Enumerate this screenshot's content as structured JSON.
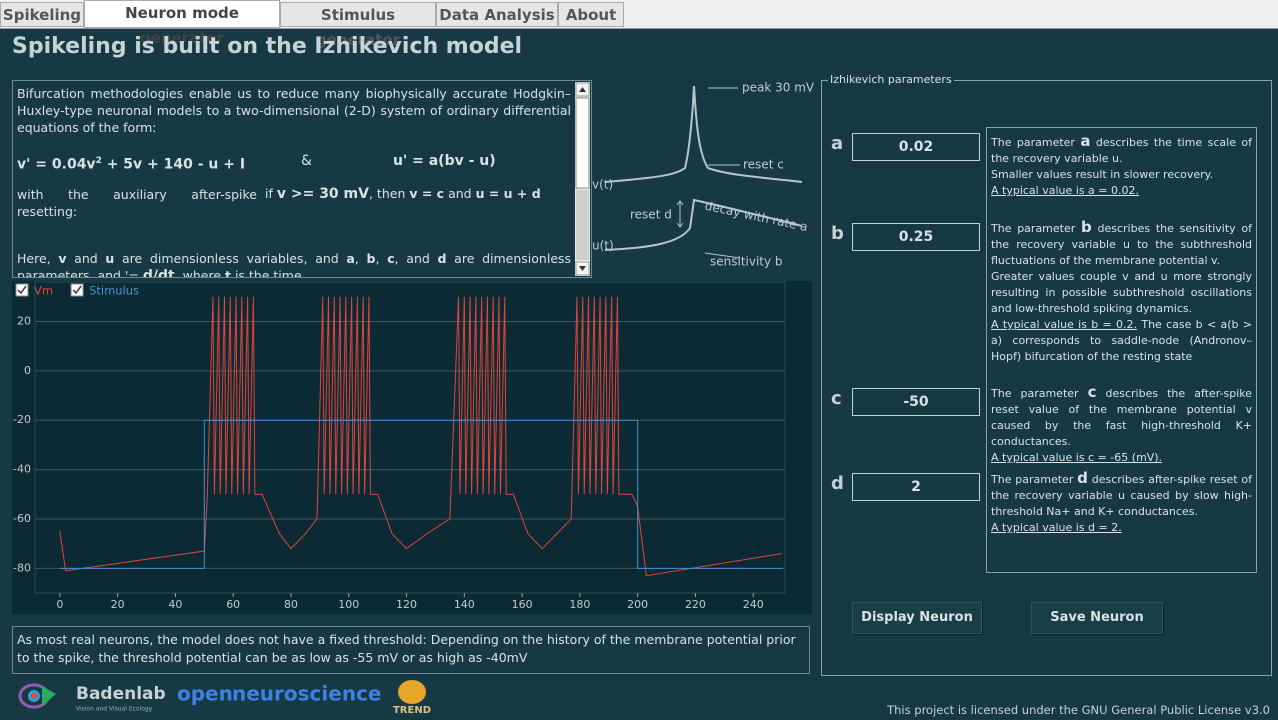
{
  "tabs": [
    "Spikeling",
    "Neuron mode generator",
    "Stimulus generator",
    "Data Analysis",
    "About"
  ],
  "title": "Spikeling is built on the Izhikevich model",
  "intro": {
    "p1": "Bifurcation methodologies enable us to reduce many biophysically accurate Hodgkin–Huxley-type neuronal models to a two-dimensional (2-D) system of ordinary differential equations of the form:",
    "eq_v": [
      "v' = 0.04v",
      "2",
      " + 5v + 140 - u + I"
    ],
    "eq_and": "&",
    "eq_u": "u' = a(bv - u)",
    "reset": [
      "with the auxiliary after-spike resetting:",
      "if ",
      "v >= 30 mV",
      ", then ",
      "v = c",
      " and ",
      "u = u + d"
    ],
    "p3": [
      "Here, ",
      "v",
      " and ",
      "u",
      " are dimensionless variables, and ",
      "a",
      ", ",
      "b",
      ", ",
      "c",
      ", and ",
      "d",
      " are dimensionless parameters, and '= ",
      "d/dt",
      ", where ",
      "t",
      " is the time."
    ]
  },
  "figure": {
    "peak": "peak 30 mV",
    "reset_c": "reset  c",
    "v": "v(t)",
    "reset_d": "reset  d",
    "decay": "decay with rate  a",
    "u": "u(t)",
    "sensitivity": "sensitivity  b"
  },
  "chart_data": {
    "type": "line",
    "series": [
      {
        "name": "Vm",
        "color": "#e0443c",
        "x": [
          0,
          2,
          50,
          51,
          53,
          53.5,
          55,
          55.5,
          57,
          57.5,
          59,
          59.5,
          61,
          61.5,
          63,
          63.5,
          65,
          65.5,
          67,
          67.5,
          70,
          76,
          80,
          85,
          89,
          91,
          91.5,
          93,
          93.5,
          95,
          95.5,
          97,
          97.5,
          99,
          99.5,
          101,
          101.5,
          103,
          103.5,
          105,
          105.5,
          107,
          107.5,
          110,
          115,
          120,
          127,
          135,
          138,
          138.5,
          140,
          140.5,
          142,
          142.5,
          144,
          144.5,
          146,
          146.5,
          148,
          148.5,
          150,
          150.5,
          152,
          152.5,
          154,
          154.5,
          157,
          162,
          167,
          172,
          177,
          179,
          179.5,
          181,
          181.5,
          183,
          183.5,
          185,
          185.5,
          187,
          187.5,
          189,
          189.5,
          191,
          191.5,
          193,
          193.5,
          198,
          200,
          203,
          250
        ],
        "values": [
          -65,
          -81,
          -73,
          -52,
          30,
          -50,
          30,
          -50,
          30,
          -50,
          30,
          -50,
          30,
          -50,
          30,
          -50,
          30,
          -50,
          30,
          -50,
          -50,
          -66,
          -72,
          -66,
          -60,
          30,
          -50,
          30,
          -50,
          30,
          -50,
          30,
          -50,
          30,
          -50,
          30,
          -50,
          30,
          -50,
          30,
          -50,
          30,
          -50,
          -50,
          -66,
          -72,
          -66,
          -60,
          30,
          -50,
          30,
          -50,
          30,
          -50,
          30,
          -50,
          30,
          -50,
          30,
          -50,
          30,
          -50,
          30,
          -50,
          30,
          -50,
          -50,
          -66,
          -72,
          -66,
          -60,
          30,
          -50,
          30,
          -50,
          30,
          -50,
          30,
          -50,
          30,
          -50,
          30,
          -50,
          30,
          -50,
          30,
          -50,
          -50,
          -55,
          -83,
          -74
        ]
      },
      {
        "name": "Stimulus",
        "color": "#4a8fd6",
        "x": [
          0,
          50,
          50,
          200,
          200,
          250
        ],
        "values": [
          -80,
          -80,
          -20,
          -20,
          -80,
          -80
        ]
      }
    ],
    "xlim": [
      -8.6,
      251
    ],
    "ylim": [
      -90,
      36
    ],
    "xticks": [
      0,
      20,
      40,
      60,
      80,
      100,
      120,
      140,
      160,
      180,
      200,
      220,
      240
    ],
    "yticks": [
      -80,
      -60,
      -40,
      -20,
      0,
      20
    ],
    "grid": true
  },
  "note": "As most real neurons, the model does not have a fixed threshold: Depending on the history of the membrane potential prior to the spike, the threshold potential can be as low as -55 mV or as high as -40mV",
  "params": {
    "group": "Izhikevich parameters",
    "items": [
      {
        "name": "a",
        "value": 0.02,
        "pre": "The parameter ",
        "post": " describes the time scale of the recovery variable u.",
        "extra": "Smaller values result in slower recovery.",
        "typical": "A typical value is a = 0.02."
      },
      {
        "name": "b",
        "value": 0.25,
        "pre": "The parameter ",
        "post": " describes the sensitivity of the recovery variable u to the subthreshold fluctuations of the membrane potential v.",
        "extra": "Greater values couple v and u more strongly resulting in possible subthreshold oscillations and low-threshold spiking dynamics.",
        "typical": "A typical value is b =  0.2.",
        "after": " The case b < a(b > a) corresponds to saddle-node (Andronov–Hopf) bifurcation of the resting state"
      },
      {
        "name": "c",
        "value": -50,
        "pre": "The parameter ",
        "post": " describes the after-spike reset value of the membrane potential v caused by the fast high-threshold K+ conductances.",
        "typical": "A typical value is c = -65 (mV)."
      },
      {
        "name": "d",
        "value": 2,
        "pre": "The parameter ",
        "post": " describes after-spike reset of the recovery variable u caused by slow high-threshold Na+ and K+ conductances.",
        "typical": "A typical value is d = 2."
      }
    ]
  },
  "buttons": [
    "Display Neuron",
    "Save Neuron"
  ],
  "logos": {
    "baden": "Badenlab",
    "baden_sub": "Vision and Visual Ecology",
    "open_a": "open",
    "open_b": "neuroscience",
    "trend": "TREND"
  },
  "license": "This project is licensed under the GNU General Public License v3.0"
}
